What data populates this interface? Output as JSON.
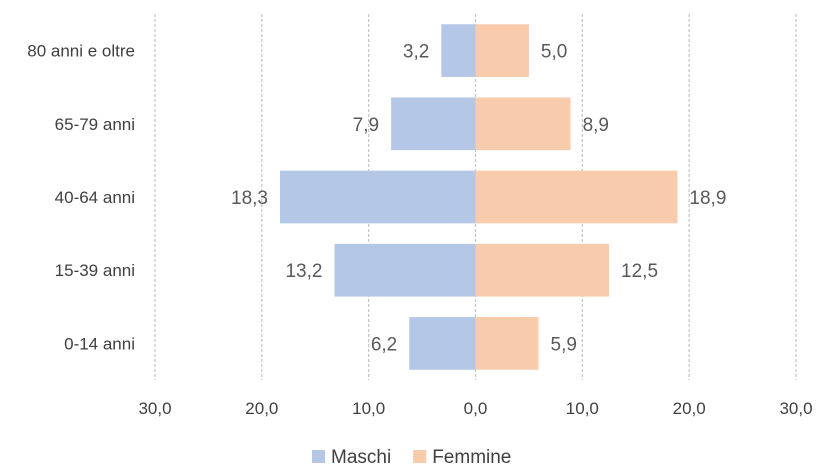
{
  "chart_data": {
    "type": "bar",
    "orientation": "horizontal-diverging",
    "title": "",
    "xlabel": "",
    "ylabel": "",
    "categories": [
      "80 anni e oltre",
      "65-79 anni",
      "40-64 anni",
      "15-39 anni",
      "0-14 anni"
    ],
    "series": [
      {
        "name": "Maschi",
        "values": [
          3.2,
          7.9,
          18.3,
          13.2,
          6.2
        ],
        "labels": [
          "3,2",
          "7,9",
          "18,3",
          "13,2",
          "6,2"
        ],
        "color": "#b4c7e7",
        "side": "left"
      },
      {
        "name": "Femmine",
        "values": [
          5.0,
          8.9,
          18.9,
          12.5,
          5.9
        ],
        "labels": [
          "5,0",
          "8,9",
          "18,9",
          "12,5",
          "5,9"
        ],
        "color": "#f8cbad",
        "side": "right"
      }
    ],
    "xlim": [
      -30,
      30
    ],
    "x_ticks": [
      -30,
      -20,
      -10,
      0,
      10,
      20,
      30
    ],
    "x_tick_labels": [
      "30,0",
      "20,0",
      "10,0",
      "0,0",
      "10,0",
      "20,0",
      "30,0"
    ],
    "grid": "vertical-dashed",
    "legend_position": "bottom"
  }
}
